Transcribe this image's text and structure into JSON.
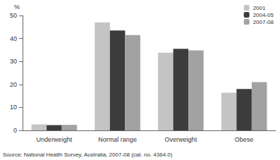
{
  "chart_data": {
    "type": "bar",
    "categories": [
      "Underweight",
      "Normal range",
      "Overweight",
      "Obese"
    ],
    "series": [
      {
        "name": "2001",
        "color": "#c4c4c4",
        "values": [
          2.6,
          47.0,
          33.8,
          16.4
        ]
      },
      {
        "name": "2004-05",
        "color": "#3c3c3c",
        "values": [
          2.3,
          43.5,
          35.5,
          18.0
        ]
      },
      {
        "name": "2007-08",
        "color": "#a2a2a2",
        "values": [
          2.4,
          41.5,
          34.8,
          21.0
        ]
      }
    ],
    "y_label": "%",
    "ylim": [
      0,
      50
    ],
    "yticks": [
      0,
      10,
      20,
      30,
      40,
      50
    ],
    "grid": false,
    "legend": "top-right",
    "source": "Source: National Health Survey, Australia, 2007-08 (cat. no. 4364.0)"
  }
}
